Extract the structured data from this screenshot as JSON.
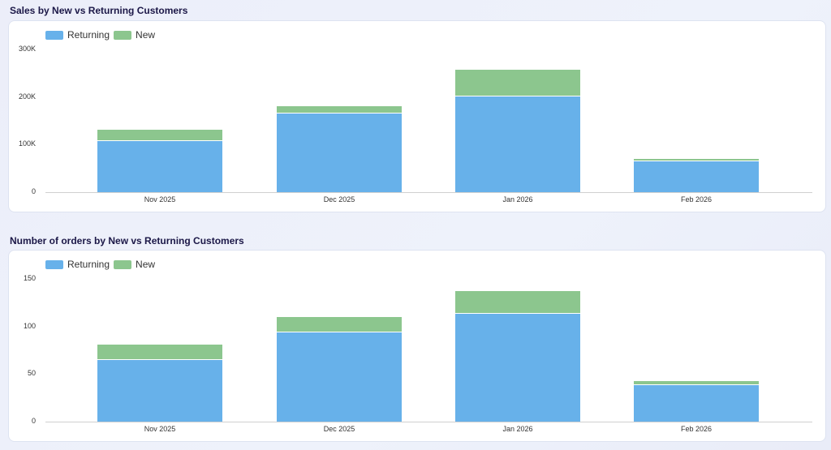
{
  "colors": {
    "returning": "#67b1ea",
    "new": "#8cc68e"
  },
  "charts": [
    {
      "title": "Sales by New vs Returning Customers",
      "legend": [
        "Returning",
        "New"
      ],
      "yticks": [
        "300K",
        "200K",
        "100K",
        "0"
      ]
    },
    {
      "title": "Number of orders by New vs Returning Customers",
      "legend": [
        "Returning",
        "New"
      ],
      "yticks": [
        "150",
        "100",
        "50",
        "0"
      ]
    }
  ],
  "chart_data": [
    {
      "type": "bar",
      "stacked": true,
      "title": "Sales by New vs Returning Customers",
      "categories": [
        "Nov 2025",
        "Dec 2025",
        "Jan 2026",
        "Feb 2026"
      ],
      "series": [
        {
          "name": "Returning",
          "values": [
            107000,
            165000,
            201000,
            65000
          ]
        },
        {
          "name": "New",
          "values": [
            24000,
            16000,
            56000,
            5000
          ]
        }
      ],
      "xlabel": "",
      "ylabel": "",
      "ylim": [
        0,
        300000
      ],
      "yticks": [
        0,
        100000,
        200000,
        300000
      ],
      "legend_position": "top-left",
      "grid": false
    },
    {
      "type": "bar",
      "stacked": true,
      "title": "Number of orders by New vs Returning Customers",
      "categories": [
        "Nov 2025",
        "Dec 2025",
        "Jan 2026",
        "Feb 2026"
      ],
      "series": [
        {
          "name": "Returning",
          "values": [
            65,
            94,
            113,
            38
          ]
        },
        {
          "name": "New",
          "values": [
            16,
            16,
            24,
            5
          ]
        }
      ],
      "xlabel": "",
      "ylabel": "",
      "ylim": [
        0,
        150
      ],
      "yticks": [
        0,
        50,
        100,
        150
      ],
      "legend_position": "top-left",
      "grid": false
    }
  ]
}
